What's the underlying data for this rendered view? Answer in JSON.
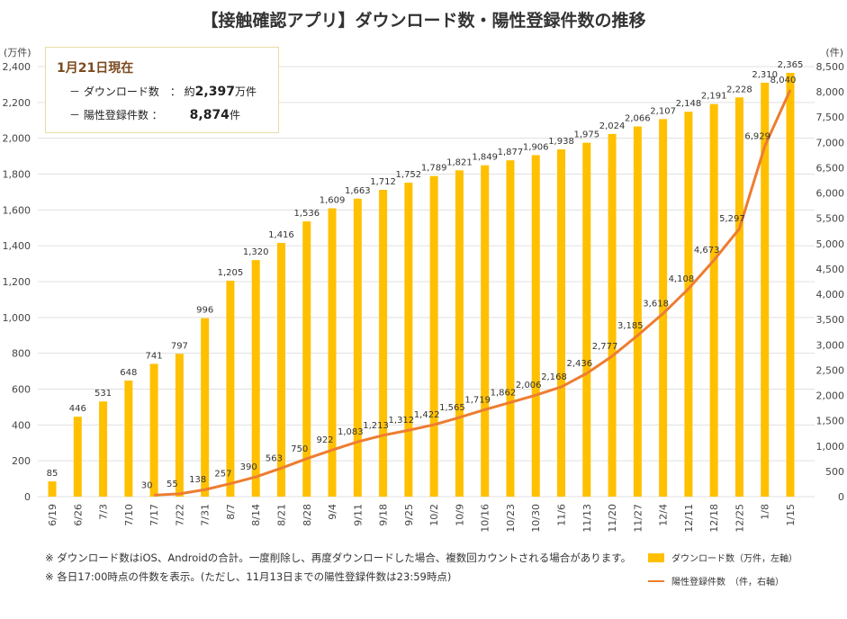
{
  "chart_data": {
    "type": "bar+line",
    "title": "【接触確認アプリ】ダウンロード数・陽性登録件数の推移",
    "y_left_unit": "(万件)",
    "y_right_unit": "(件)",
    "y_left_range": [
      0,
      2400
    ],
    "y_right_range": [
      0,
      8500
    ],
    "y_left_ticks": [
      0,
      200,
      400,
      600,
      800,
      1000,
      1200,
      1400,
      1600,
      1800,
      2000,
      2200,
      2400
    ],
    "y_right_ticks": [
      0,
      500,
      1000,
      1500,
      2000,
      2500,
      3000,
      3500,
      4000,
      4500,
      5000,
      5500,
      6000,
      6500,
      7000,
      7500,
      8000,
      8500
    ],
    "grid": true,
    "categories": [
      "6/19",
      "6/26",
      "7/3",
      "7/10",
      "7/17",
      "7/22",
      "7/31",
      "8/7",
      "8/14",
      "8/21",
      "8/28",
      "9/4",
      "9/11",
      "9/18",
      "9/25",
      "10/2",
      "10/9",
      "10/16",
      "10/23",
      "10/30",
      "11/6",
      "11/13",
      "11/20",
      "11/27",
      "12/4",
      "12/11",
      "12/18",
      "12/25",
      "1/8",
      "1/15"
    ],
    "series": [
      {
        "name": "ダウンロード数（万件，左軸）",
        "type": "bar",
        "axis": "left",
        "color": "#ffc000",
        "values": [
          85,
          446,
          531,
          648,
          741,
          797,
          996,
          1205,
          1320,
          1416,
          1536,
          1609,
          1663,
          1712,
          1752,
          1789,
          1821,
          1849,
          1877,
          1906,
          1938,
          1975,
          2024,
          2066,
          2107,
          2148,
          2191,
          2228,
          2310,
          2365
        ]
      },
      {
        "name": "陽性登録件数　（件，右軸）",
        "type": "line",
        "axis": "right",
        "color": "#ed7d31",
        "values": [
          null,
          null,
          null,
          null,
          30,
          55,
          138,
          257,
          390,
          563,
          750,
          922,
          1083,
          1213,
          1312,
          1422,
          1565,
          1719,
          1862,
          2006,
          2168,
          2436,
          2777,
          3185,
          3618,
          4108,
          4673,
          5297,
          6929,
          8040
        ]
      }
    ]
  },
  "info": {
    "heading": "1月21日現在",
    "row1_label": "－ ダウンロード数　：",
    "row1_prefix": "約",
    "row1_value": "2,397",
    "row1_unit": "万件",
    "row2_label": "－ 陽性登録件数 ：",
    "row2_value": "8,874",
    "row2_unit": "件"
  },
  "notes": [
    "※ ダウンロード数はiOS、Androidの合計。一度削除し、再度ダウンロードした場合、複数回カウントされる場合があります。",
    "※ 各日17:00時点の件数を表示。(ただし、11月13日までの陽性登録件数は23:59時点)"
  ]
}
